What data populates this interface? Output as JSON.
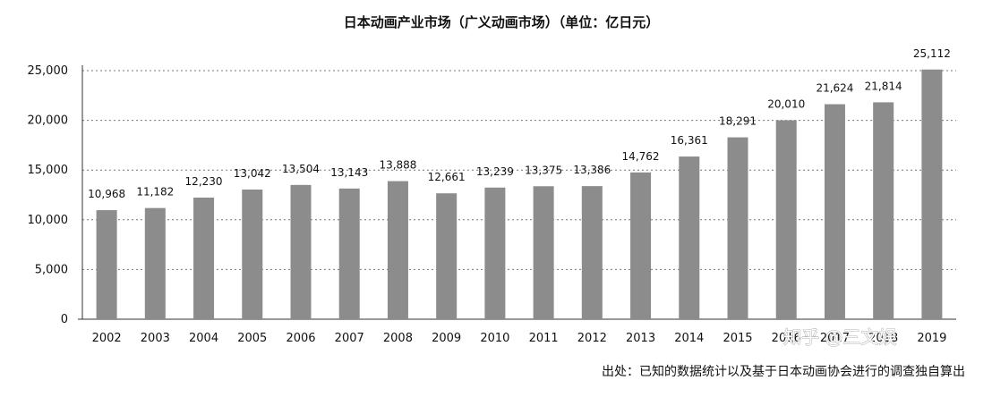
{
  "chart_data": {
    "type": "bar",
    "title": "日本动画产业市场（广义动画市场）（单位：亿日元）",
    "categories": [
      "2002",
      "2003",
      "2004",
      "2005",
      "2006",
      "2007",
      "2008",
      "2009",
      "2010",
      "2011",
      "2012",
      "2013",
      "2014",
      "2015",
      "2016",
      "2017",
      "2018",
      "2019"
    ],
    "values": [
      10968,
      11182,
      12230,
      13042,
      13504,
      13143,
      13888,
      12661,
      13239,
      13375,
      13386,
      14762,
      16361,
      18291,
      20010,
      21624,
      21814,
      25112
    ],
    "value_labels": [
      "10,968",
      "11,182",
      "12,230",
      "13,042",
      "13,504",
      "13,143",
      "13,888",
      "12,661",
      "13,239",
      "13,375",
      "13,386",
      "14,762",
      "16,361",
      "18,291",
      "20,010",
      "21,624",
      "21,814",
      "25,112"
    ],
    "y_ticks": [
      {
        "value": 0,
        "label": "0"
      },
      {
        "value": 5000,
        "label": "5,000"
      },
      {
        "value": 10000,
        "label": "10,000"
      },
      {
        "value": 15000,
        "label": "15,000"
      },
      {
        "value": 20000,
        "label": "20,000"
      },
      {
        "value": 25000,
        "label": "25,000"
      }
    ],
    "ylim": [
      0,
      25000
    ],
    "xlabel": "",
    "ylabel": "",
    "grid": true,
    "bar_color": "#8c8c8c",
    "grid_color": "#777777",
    "legend": "none"
  },
  "source_note": "出处：已知的数据统计以及基于日本动画协会进行的调查独自算出",
  "watermark": "知乎 @三文娱"
}
